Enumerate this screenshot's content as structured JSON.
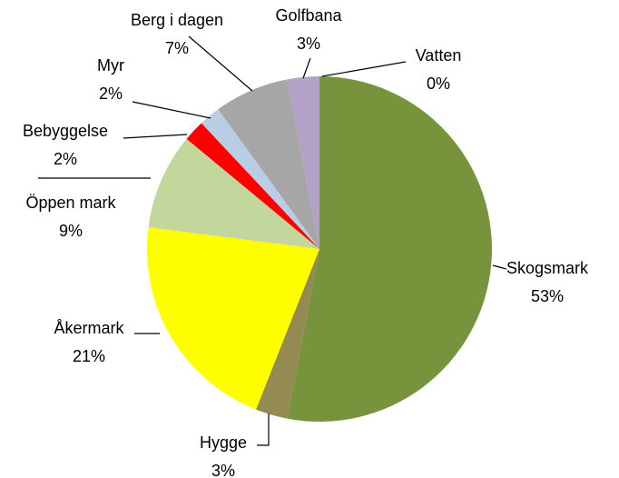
{
  "chart_data": {
    "type": "pie",
    "categories": [
      "Vatten",
      "Skogsmark",
      "Hygge",
      "Åkermark",
      "Öppen mark",
      "Bebyggelse",
      "Myr",
      "Berg i dagen",
      "Golfbana"
    ],
    "values": [
      0,
      53,
      3,
      21,
      9,
      2,
      2,
      7,
      3
    ],
    "value_labels": [
      "0%",
      "53%",
      "3%",
      "21%",
      "9%",
      "2%",
      "2%",
      "7%",
      "3%"
    ],
    "colors": [
      "#2e5fa8",
      "#77933c",
      "#948a54",
      "#ffff00",
      "#c3d69b",
      "#ff0000",
      "#b9cde5",
      "#a6a6a6",
      "#b3a2c7"
    ]
  }
}
